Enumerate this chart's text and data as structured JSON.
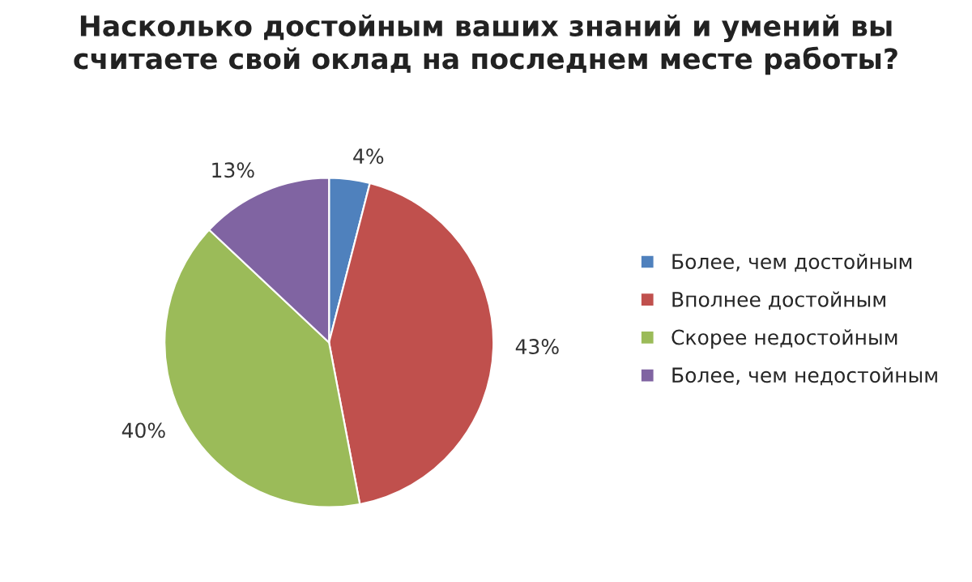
{
  "chart_data": {
    "type": "pie",
    "title": "Насколько достойным ваших знаний и умений вы\nсчитаете свой оклад на последнем месте работы?",
    "categories": [
      "Более, чем достойным",
      "Вполнее достойным",
      "Скорее недостойным",
      "Более, чем недостойным"
    ],
    "values": [
      4,
      43,
      40,
      13
    ],
    "colors": [
      "#4f81bd",
      "#c0504d",
      "#9bbb59",
      "#8064a2"
    ],
    "value_labels": [
      "4%",
      "43%",
      "40%",
      "13%"
    ],
    "legend": "right"
  }
}
